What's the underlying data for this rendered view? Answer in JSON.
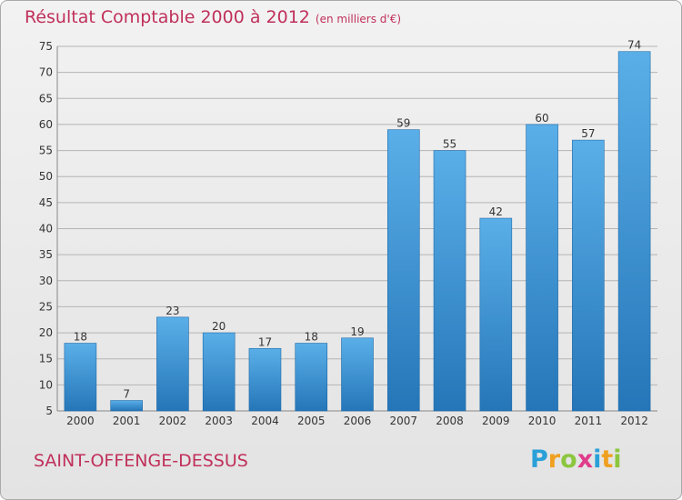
{
  "header": {
    "title": "Résultat Comptable 2000 à 2012",
    "unit": "(en milliers d'€)"
  },
  "commune": "SAINT-OFFENGE-DESSUS",
  "logo": {
    "text": "Proxiti",
    "letters": [
      {
        "char": "P",
        "color": "#2aa0d8"
      },
      {
        "char": "r",
        "color": "#f0a020"
      },
      {
        "char": "o",
        "color": "#8cc63f"
      },
      {
        "char": "x",
        "color": "#e03c8c"
      },
      {
        "char": "i",
        "color": "#2aa0d8"
      },
      {
        "char": "t",
        "color": "#f0a020"
      },
      {
        "char": "i",
        "color": "#8cc63f"
      }
    ]
  },
  "colors": {
    "bar_light": "#5aafe8",
    "bar_dark": "#2576b8",
    "grid": "#b4b4b4",
    "title": "#c0305a",
    "axis_text": "#333333"
  },
  "chart_data": {
    "type": "bar",
    "title": "Résultat Comptable 2000 à 2012",
    "ylabel": "en milliers d'€",
    "xlabel": "",
    "categories": [
      "2000",
      "2001",
      "2002",
      "2003",
      "2004",
      "2005",
      "2006",
      "2007",
      "2008",
      "2009",
      "2010",
      "2011",
      "2012"
    ],
    "values": [
      18,
      7,
      23,
      20,
      17,
      18,
      19,
      59,
      55,
      42,
      60,
      57,
      74
    ],
    "ylim": [
      5,
      75
    ],
    "yticks": [
      5,
      10,
      15,
      20,
      25,
      30,
      35,
      40,
      45,
      50,
      55,
      60,
      65,
      70,
      75
    ],
    "grid": true
  }
}
